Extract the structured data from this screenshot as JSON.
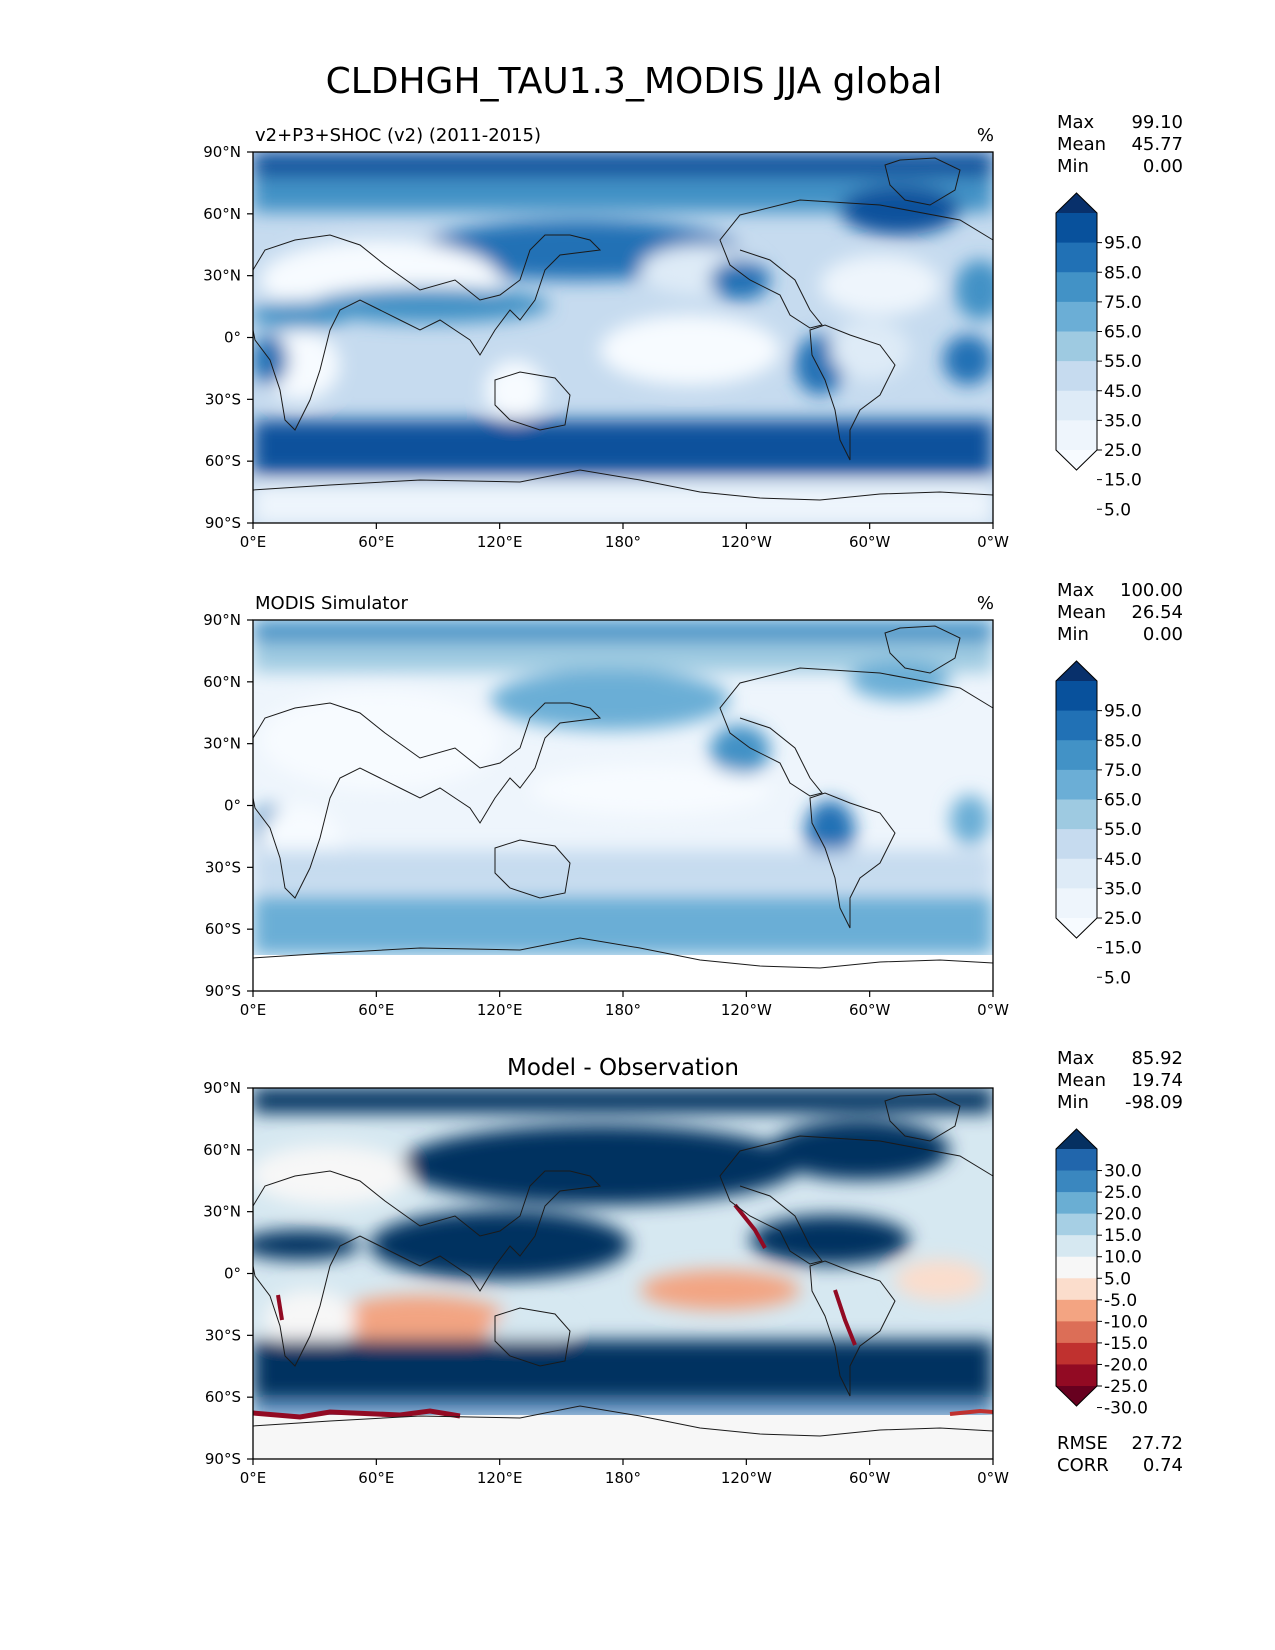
{
  "title": "CLDHGH_TAU1.3_MODIS JJA global",
  "chart_data": [
    {
      "type": "heatmap",
      "title": "v2+P3+SHOC (v2) (2011-2015)",
      "units": "%",
      "xlabel": "",
      "ylabel": "",
      "xticks": [
        "0°E",
        "60°E",
        "120°E",
        "180°",
        "120°W",
        "60°W",
        "0°W"
      ],
      "yticks": [
        "90°N",
        "60°N",
        "30°N",
        "0°",
        "30°S",
        "60°S",
        "90°S"
      ],
      "stats": [
        {
          "label": "Max",
          "value": "99.10"
        },
        {
          "label": "Mean",
          "value": "45.77"
        },
        {
          "label": "Min",
          "value": "0.00"
        }
      ],
      "colorbar": {
        "labels": [
          "95.0",
          "85.0",
          "75.0",
          "65.0",
          "55.0",
          "45.0",
          "35.0",
          "25.0",
          "15.0",
          "5.0"
        ],
        "colors": [
          "#08306b",
          "#08519c",
          "#2171b5",
          "#4292c6",
          "#6baed6",
          "#9ecae1",
          "#c6dbef",
          "#deebf7",
          "#eef5fc",
          "#f7fbff"
        ]
      }
    },
    {
      "type": "heatmap",
      "title": "MODIS Simulator",
      "units": "%",
      "xlabel": "",
      "ylabel": "",
      "xticks": [
        "0°E",
        "60°E",
        "120°E",
        "180°",
        "120°W",
        "60°W",
        "0°W"
      ],
      "yticks": [
        "90°N",
        "60°N",
        "30°N",
        "0°",
        "30°S",
        "60°S",
        "90°S"
      ],
      "stats": [
        {
          "label": "Max",
          "value": "100.00"
        },
        {
          "label": "Mean",
          "value": "26.54"
        },
        {
          "label": "Min",
          "value": "0.00"
        }
      ],
      "colorbar": {
        "labels": [
          "95.0",
          "85.0",
          "75.0",
          "65.0",
          "55.0",
          "45.0",
          "35.0",
          "25.0",
          "15.0",
          "5.0"
        ],
        "colors": [
          "#08306b",
          "#08519c",
          "#2171b5",
          "#4292c6",
          "#6baed6",
          "#9ecae1",
          "#c6dbef",
          "#deebf7",
          "#eef5fc",
          "#f7fbff"
        ]
      }
    },
    {
      "type": "heatmap",
      "title": "Model - Observation",
      "units": "",
      "xlabel": "",
      "ylabel": "",
      "xticks": [
        "0°E",
        "60°E",
        "120°E",
        "180°",
        "120°W",
        "60°W",
        "0°W"
      ],
      "yticks": [
        "90°N",
        "60°N",
        "30°N",
        "0°",
        "30°S",
        "60°S",
        "90°S"
      ],
      "stats": [
        {
          "label": "Max",
          "value": "85.92"
        },
        {
          "label": "Mean",
          "value": "19.74"
        },
        {
          "label": "Min",
          "value": "-98.09"
        }
      ],
      "colorbar": {
        "labels": [
          "30.0",
          "25.0",
          "20.0",
          "15.0",
          "10.0",
          "5.0",
          "-5.0",
          "-10.0",
          "-15.0",
          "-20.0",
          "-25.0",
          "-30.0"
        ],
        "colors": [
          "#053061",
          "#2166ac",
          "#3a87bf",
          "#6aaed3",
          "#a6cfe4",
          "#d6e8f1",
          "#f7f7f7",
          "#fbddcc",
          "#f3a482",
          "#dc6e57",
          "#c0312f",
          "#920a23",
          "#67001f"
        ]
      },
      "extra_stats": [
        {
          "label": "RMSE",
          "value": "27.72"
        },
        {
          "label": "CORR",
          "value": "0.74"
        }
      ]
    }
  ]
}
